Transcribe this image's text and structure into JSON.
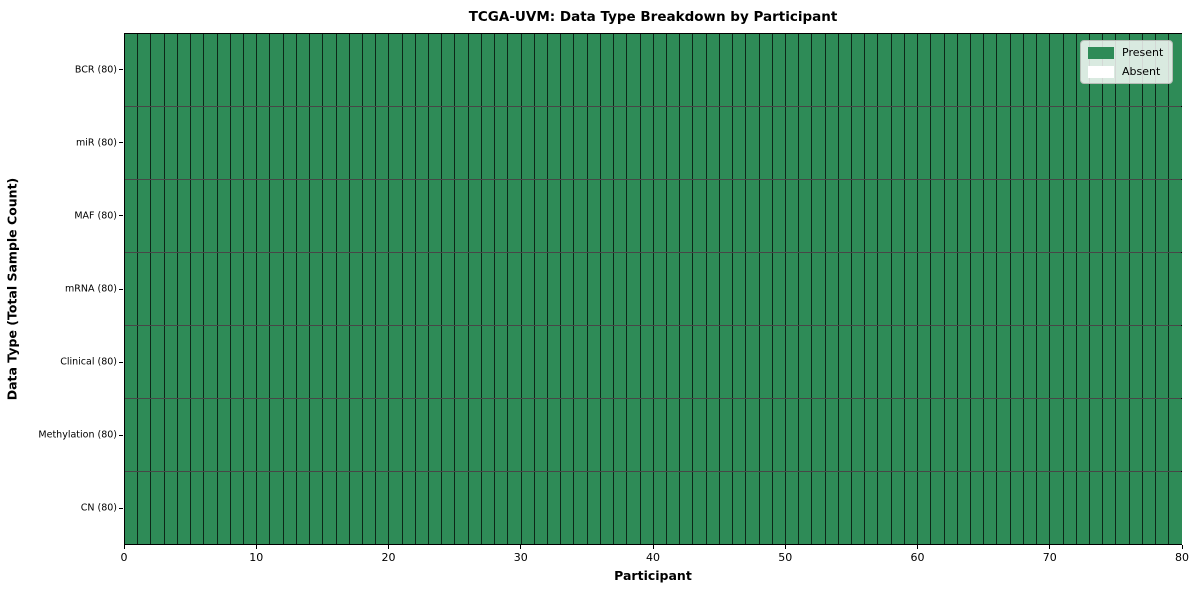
{
  "chart_data": {
    "type": "heatmap",
    "title": "TCGA-UVM: Data Type Breakdown by Participant",
    "xlabel": "Participant",
    "ylabel": "Data Type (Total Sample Count)",
    "xlim": [
      0,
      80
    ],
    "x_ticks": [
      0,
      10,
      20,
      30,
      40,
      50,
      60,
      70,
      80
    ],
    "n_participants": 80,
    "cell_states": {
      "present": "Present",
      "absent": "Absent"
    },
    "rows": [
      {
        "label": "BCR (80)",
        "present": 80,
        "absent": 0
      },
      {
        "label": "miR (80)",
        "present": 80,
        "absent": 0
      },
      {
        "label": "MAF (80)",
        "present": 80,
        "absent": 0
      },
      {
        "label": "mRNA (80)",
        "present": 80,
        "absent": 0
      },
      {
        "label": "Clinical (80)",
        "present": 80,
        "absent": 0
      },
      {
        "label": "Methylation (80)",
        "present": 80,
        "absent": 0
      },
      {
        "label": "CN (80)",
        "present": 80,
        "absent": 0
      }
    ],
    "legend": {
      "position": "upper right",
      "entries": [
        {
          "label": "Present",
          "color": "#2e8b57"
        },
        {
          "label": "Absent",
          "color": "#ffffff"
        }
      ]
    },
    "colors": {
      "present": "#2e8b57",
      "absent": "#ffffff",
      "cell_edge": "#1f3a2b",
      "axes_edge": "#000000",
      "background": "#ffffff"
    },
    "grid": "cell edges (mesh lines between every participant and data type)"
  }
}
